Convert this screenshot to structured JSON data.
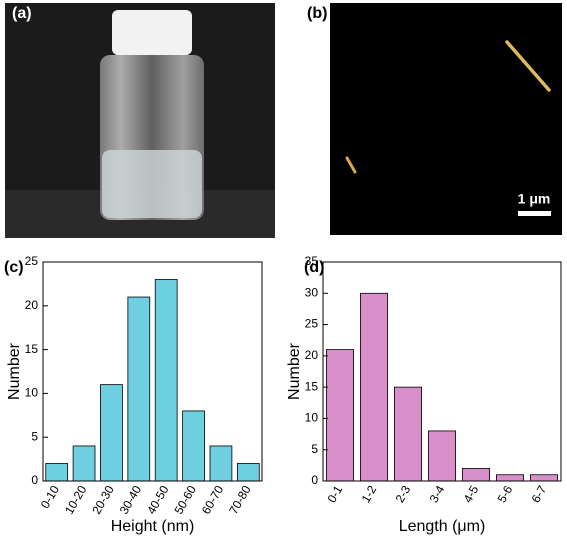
{
  "panel_labels": [
    "(a)",
    "(b)",
    "(c)",
    "(d)"
  ],
  "scale_bar": "1 μm",
  "chart_data": [
    {
      "type": "bar",
      "categories": [
        "0-10",
        "10-20",
        "20-30",
        "30-40",
        "40-50",
        "50-60",
        "60-70",
        "70-80"
      ],
      "values": [
        2,
        4,
        11,
        21,
        23,
        8,
        4,
        2
      ],
      "color": "#6dcfe0",
      "xlabel": "Height (nm)",
      "ylabel": "Number",
      "ylim": [
        0,
        25
      ],
      "yticks": [
        0,
        5,
        10,
        15,
        20,
        25
      ]
    },
    {
      "type": "bar",
      "categories": [
        "0-1",
        "1-2",
        "2-3",
        "3-4",
        "4-5",
        "5-6",
        "6-7"
      ],
      "values": [
        21,
        30,
        15,
        8,
        2,
        1,
        1
      ],
      "color": "#d98fc9",
      "xlabel": "Length (μm)",
      "ylabel": "Number",
      "ylim": [
        0,
        35
      ],
      "yticks": [
        0,
        5,
        10,
        15,
        20,
        25,
        30,
        35
      ]
    }
  ]
}
